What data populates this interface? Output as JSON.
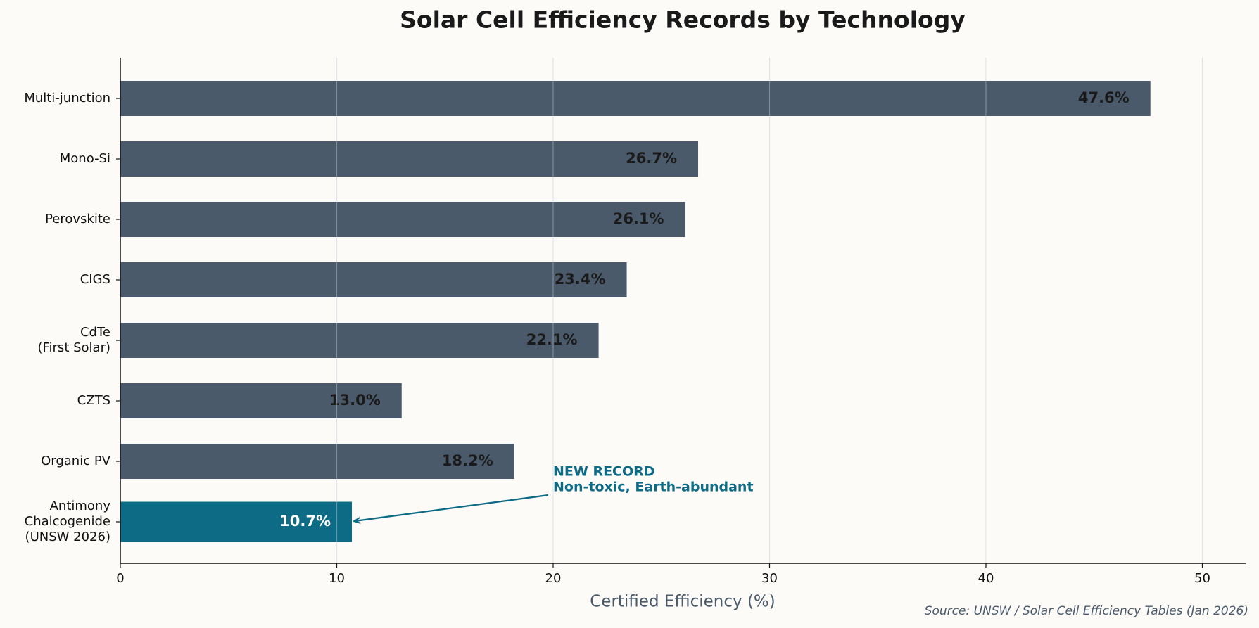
{
  "chart_data": {
    "type": "barh",
    "title": "Solar Cell Efficiency Records by Technology",
    "categories": [
      "Multi-junction",
      "Mono-Si",
      "Perovskite",
      "CIGS",
      "CdTe\n(First Solar)",
      "CZTS",
      "Organic PV",
      "Antimony\nChalcogenide\n(UNSW 2026)"
    ],
    "values": [
      47.6,
      26.7,
      26.1,
      23.4,
      22.1,
      13.0,
      18.2,
      10.7
    ],
    "value_labels": [
      "47.6%",
      "26.7%",
      "26.1%",
      "23.4%",
      "22.1%",
      "13.0%",
      "18.2%",
      "10.7%"
    ],
    "colors": [
      "#4a5a6a",
      "#4a5a6a",
      "#4a5a6a",
      "#4a5a6a",
      "#4a5a6a",
      "#4a5a6a",
      "#4a5a6a",
      "#0e6b85"
    ],
    "xlabel": "Certified Efficiency (%)",
    "xlim": [
      0,
      52
    ],
    "xticks": [
      0,
      10,
      20,
      30,
      40,
      50
    ],
    "grid": true,
    "annotation": {
      "lines": [
        "NEW RECORD",
        "Non-toxic, Earth-abundant"
      ],
      "color": "#0e6b85"
    },
    "source": "Source: UNSW / Solar Cell Efficiency Tables (Jan 2026)"
  }
}
